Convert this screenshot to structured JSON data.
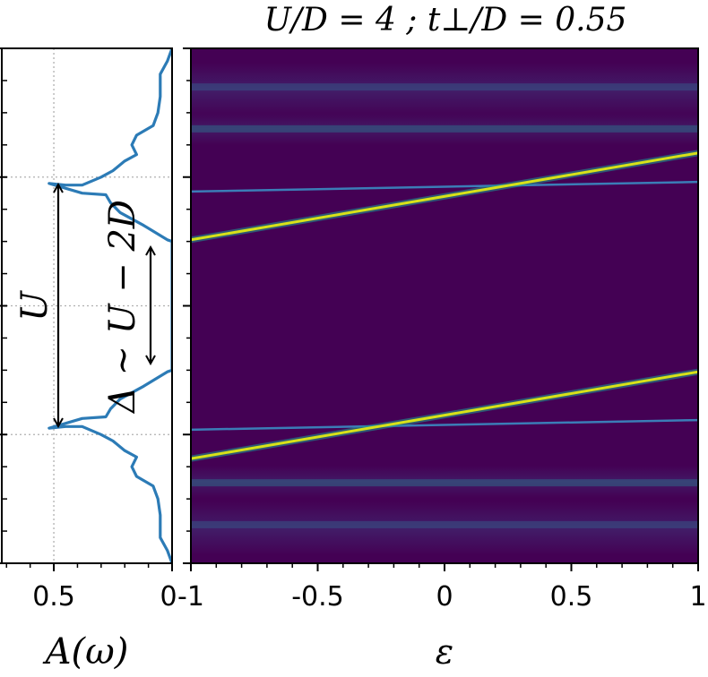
{
  "chart_data": [
    {
      "type": "line",
      "name": "spectral-function-panel",
      "title": "",
      "xlabel": "A(ω)",
      "ylabel": "",
      "x_axis_reversed": true,
      "xlim": [
        0.72,
        0
      ],
      "ylim": [
        -8,
        8
      ],
      "x_ticks": [
        "0.5",
        "0"
      ],
      "x_tick_values": [
        0.5,
        0
      ],
      "grid": true,
      "gridlines_x": [
        0.5
      ],
      "gridlines_y": [
        -4,
        0,
        4
      ],
      "series": [
        {
          "name": "A(ω)",
          "color": "#2c7bb6",
          "points": [
            [
              0.0,
              8.0
            ],
            [
              0.02,
              7.6
            ],
            [
              0.05,
              7.2
            ],
            [
              0.05,
              6.5
            ],
            [
              0.06,
              6.0
            ],
            [
              0.08,
              5.6
            ],
            [
              0.15,
              5.3
            ],
            [
              0.17,
              5.0
            ],
            [
              0.15,
              4.7
            ],
            [
              0.2,
              4.5
            ],
            [
              0.25,
              4.2
            ],
            [
              0.3,
              4.0
            ],
            [
              0.38,
              3.75
            ],
            [
              0.45,
              3.75
            ],
            [
              0.52,
              3.8
            ],
            [
              0.38,
              3.5
            ],
            [
              0.28,
              3.45
            ],
            [
              0.26,
              3.2
            ],
            [
              0.22,
              2.9
            ],
            [
              0.12,
              2.5
            ],
            [
              0.02,
              2.05
            ],
            [
              0.0,
              2.0
            ],
            [
              0.0,
              -2.0
            ],
            [
              0.02,
              -2.05
            ],
            [
              0.12,
              -2.5
            ],
            [
              0.22,
              -2.9
            ],
            [
              0.26,
              -3.2
            ],
            [
              0.28,
              -3.45
            ],
            [
              0.38,
              -3.5
            ],
            [
              0.52,
              -3.8
            ],
            [
              0.45,
              -3.75
            ],
            [
              0.38,
              -3.75
            ],
            [
              0.3,
              -4.0
            ],
            [
              0.25,
              -4.2
            ],
            [
              0.2,
              -4.5
            ],
            [
              0.15,
              -4.7
            ],
            [
              0.17,
              -5.0
            ],
            [
              0.15,
              -5.3
            ],
            [
              0.08,
              -5.6
            ],
            [
              0.06,
              -6.0
            ],
            [
              0.05,
              -6.5
            ],
            [
              0.05,
              -7.2
            ],
            [
              0.02,
              -7.6
            ],
            [
              0.0,
              -8.0
            ]
          ]
        }
      ],
      "annotations": [
        {
          "text": "U",
          "type": "double-arrow",
          "from_y": 3.8,
          "to_y": -3.8,
          "at_x": 0.5
        },
        {
          "text": "Δ ~ U − 2D",
          "type": "double-arrow",
          "from_y": 1.9,
          "to_y": -1.9,
          "at_x": 0.22
        }
      ]
    },
    {
      "type": "heatmap",
      "name": "spectral-map",
      "title": "U/D = 4 ; t⊥/D = 0.55",
      "xlabel": "ε",
      "ylabel": "",
      "xlim": [
        -1,
        1
      ],
      "ylim": [
        -8,
        8
      ],
      "x_ticks": [
        "-1",
        "-0.5",
        "0",
        "0.5",
        "1"
      ],
      "x_tick_values": [
        -1,
        -0.5,
        0,
        0.5,
        1
      ],
      "colormap": "viridis",
      "background_color": "#440154",
      "bright_lines": [
        {
          "name": "upper-quasiparticle",
          "color": "#d8e219",
          "eps": [
            -1,
            1
          ],
          "omega": [
            2.05,
            4.75
          ]
        },
        {
          "name": "lower-quasiparticle",
          "color": "#d8e219",
          "eps": [
            -1,
            1
          ],
          "omega": [
            -4.75,
            -2.05
          ]
        }
      ],
      "faint_lines": [
        {
          "name": "upper-band-edge",
          "color": "#3b8bc2",
          "eps": [
            -1,
            1
          ],
          "omega": [
            3.55,
            3.85
          ]
        },
        {
          "name": "lower-band-edge",
          "color": "#3b8bc2",
          "eps": [
            -1,
            1
          ],
          "omega": [
            -3.85,
            -3.55
          ]
        },
        {
          "name": "upper-satellite-a",
          "color": "#2a788e",
          "eps": [
            -1,
            1
          ],
          "omega": [
            5.5,
            5.5
          ]
        },
        {
          "name": "upper-satellite-b",
          "color": "#34618d",
          "eps": [
            -1,
            1
          ],
          "omega": [
            6.8,
            6.8
          ]
        },
        {
          "name": "lower-satellite-a",
          "color": "#2a788e",
          "eps": [
            -1,
            1
          ],
          "omega": [
            -5.5,
            -5.5
          ]
        },
        {
          "name": "lower-satellite-b",
          "color": "#34618d",
          "eps": [
            -1,
            1
          ],
          "omega": [
            -6.8,
            -6.8
          ]
        }
      ]
    }
  ],
  "title_text": "U/D = 4 ; t⊥/D = 0.55",
  "left_xlabel": "A(ω)",
  "right_xlabel": "ε",
  "arrow_label_U": "U",
  "arrow_label_gap": "Δ ~ U − 2D"
}
